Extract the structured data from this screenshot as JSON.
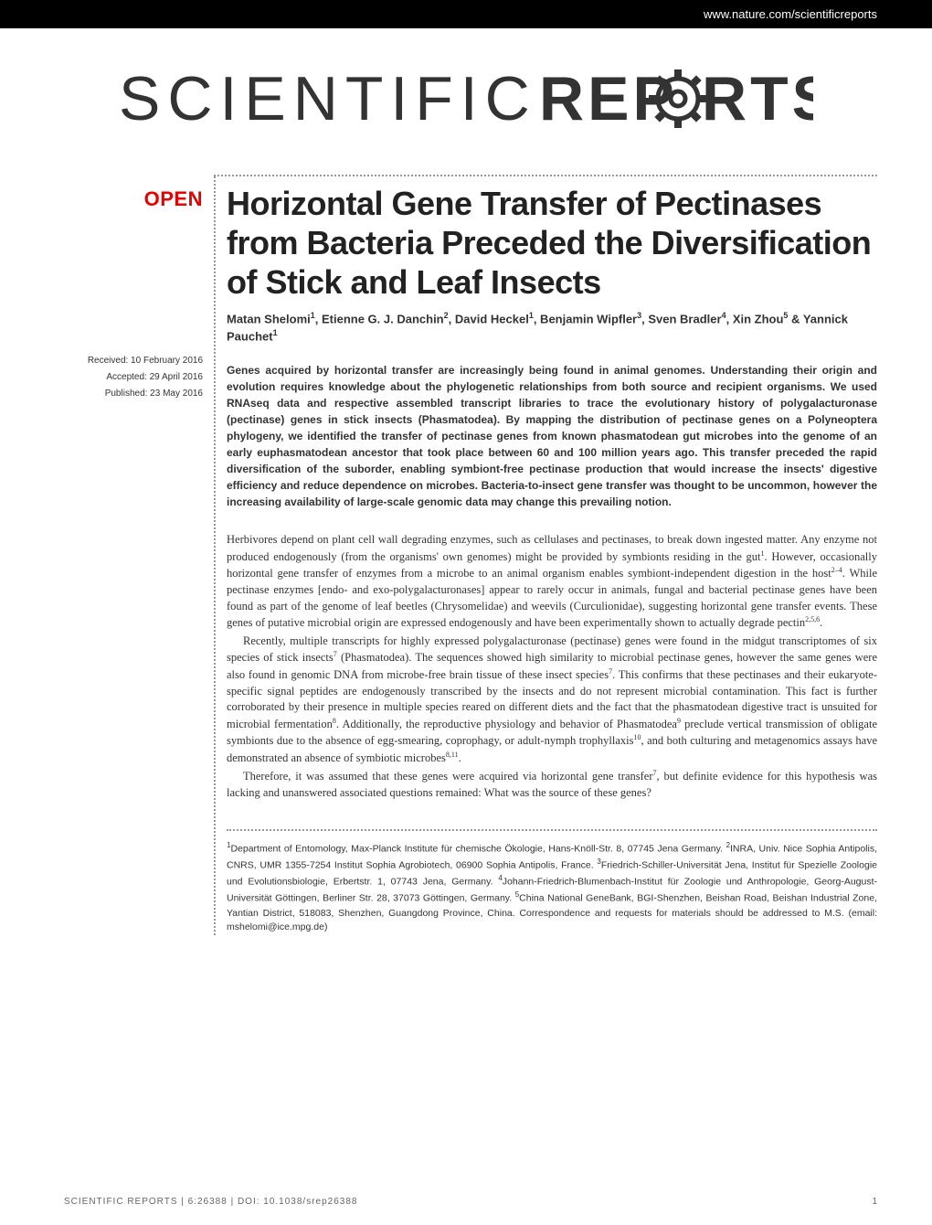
{
  "header": {
    "url": "www.nature.com/scientificreports"
  },
  "journal_name": "SCIENTIFIC REPORTS",
  "open_badge": "OPEN",
  "dates": {
    "received": "Received: 10 February 2016",
    "accepted": "Accepted: 29 April 2016",
    "published": "Published: 23 May 2016"
  },
  "article": {
    "title": "Horizontal Gene Transfer of Pectinases from Bacteria Preceded the Diversification of Stick and Leaf Insects",
    "authors_html": "Matan Shelomi<sup>1</sup>, Etienne G. J. Danchin<sup>2</sup>, David Heckel<sup>1</sup>, Benjamin Wipfler<sup>3</sup>, Sven Bradler<sup>4</sup>, Xin Zhou<sup>5</sup> & Yannick Pauchet<sup>1</sup>",
    "abstract": "Genes acquired by horizontal transfer are increasingly being found in animal genomes. Understanding their origin and evolution requires knowledge about the phylogenetic relationships from both source and recipient organisms. We used RNAseq data and respective assembled transcript libraries to trace the evolutionary history of polygalacturonase (pectinase) genes in stick insects (Phasmatodea). By mapping the distribution of pectinase genes on a Polyneoptera phylogeny, we identified the transfer of pectinase genes from known phasmatodean gut microbes into the genome of an early euphasmatodean ancestor that took place between 60 and 100 million years ago. This transfer preceded the rapid diversification of the suborder, enabling symbiont-free pectinase production that would increase the insects' digestive efficiency and reduce dependence on microbes. Bacteria-to-insect gene transfer was thought to be uncommon, however the increasing availability of large-scale genomic data may change this prevailing notion.",
    "paragraphs": [
      "Herbivores depend on plant cell wall degrading enzymes, such as cellulases and pectinases, to break down ingested matter. Any enzyme not produced endogenously (from the organisms' own genomes) might be provided by symbionts residing in the gut<sup>1</sup>. However, occasionally horizontal gene transfer of enzymes from a microbe to an animal organism enables symbiont-independent digestion in the host<sup>2–4</sup>. While pectinase enzymes [endo- and exo-polygalacturonases] appear to rarely occur in animals, fungal and bacterial pectinase genes have been found as part of the genome of leaf beetles (Chrysomelidae) and weevils (Curculionidae), suggesting horizontal gene transfer events. These genes of putative microbial origin are expressed endogenously and have been experimentally shown to actually degrade pectin<sup>2,5,6</sup>.",
      "Recently, multiple transcripts for highly expressed polygalacturonase (pectinase) genes were found in the midgut transcriptomes of six species of stick insects<sup>7</sup> (Phasmatodea). The sequences showed high similarity to microbial pectinase genes, however the same genes were also found in genomic DNA from microbe-free brain tissue of these insect species<sup>7</sup>. This confirms that these pectinases and their eukaryote-specific signal peptides are endogenously transcribed by the insects and do not represent microbial contamination. This fact is further corroborated by their presence in multiple species reared on different diets and the fact that the phasmatodean digestive tract is unsuited for microbial fermentation<sup>8</sup>. Additionally, the reproductive physiology and behavior of Phasmatodea<sup>9</sup> preclude vertical transmission of obligate symbionts due to the absence of egg-smearing, coprophagy, or adult-nymph trophyllaxis<sup>10</sup>, and both culturing and metagenomics assays have demonstrated an absence of symbiotic microbes<sup>8,11</sup>.",
      "Therefore, it was assumed that these genes were acquired via horizontal gene transfer<sup>7</sup>, but definite evidence for this hypothesis was lacking and unanswered associated questions remained: What was the source of these genes?"
    ],
    "affiliations": "<sup>1</sup>Department of Entomology, Max-Planck Institute für chemische Ökologie, Hans-Knöll-Str. 8, 07745 Jena Germany. <sup>2</sup>INRA, Univ. Nice Sophia Antipolis, CNRS, UMR 1355-7254 Institut Sophia Agrobiotech, 06900 Sophia Antipolis, France. <sup>3</sup>Friedrich-Schiller-Universität Jena, Institut für Spezielle Zoologie und Evolutionsbiologie, Erbertstr. 1, 07743 Jena, Germany. <sup>4</sup>Johann-Friedrich-Blumenbach-Institut für Zoologie und Anthropologie, Georg-August-Universität Göttingen, Berliner Str. 28, 37073 Göttingen, Germany. <sup>5</sup>China National GeneBank, BGI-Shenzhen, Beishan Road, Beishan Industrial Zone, Yantian District, 518083, Shenzhen, Guangdong Province, China. Correspondence and requests for materials should be addressed to M.S. (email: mshelomi@ice.mpg.de)"
  },
  "footer": {
    "citation": "SCIENTIFIC REPORTS | 6:26388 | DOI: 10.1038/srep26388",
    "page": "1"
  },
  "colors": {
    "background": "#ffffff",
    "header_bg": "#000000",
    "header_text": "#ffffff",
    "open_badge": "#e60000",
    "body_text": "#333333",
    "dotted_border": "#999999",
    "footer_text": "#666666"
  }
}
